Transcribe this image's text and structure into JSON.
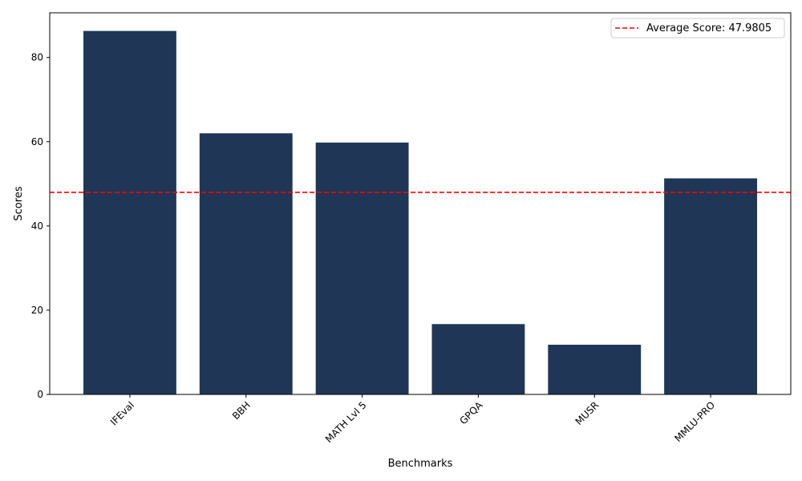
{
  "chart_data": {
    "type": "bar",
    "categories": [
      "IFEval",
      "BBH",
      "MATH Lvl 5",
      "GPQA",
      "MUSR",
      "MMLU-PRO"
    ],
    "values": [
      86.3,
      62.0,
      59.8,
      16.7,
      11.8,
      51.3
    ],
    "xlabel": "Benchmarks",
    "ylabel": "Scores",
    "ylim": [
      0,
      90.6
    ],
    "yticks": [
      0,
      20,
      40,
      60,
      80
    ],
    "bar_color": "#1f3657",
    "average_line": {
      "value": 47.9805,
      "label": "Average Score: 47.9805",
      "color": "#ff0000",
      "style": "dashed"
    },
    "legend_position": "top-right",
    "grid": false
  }
}
